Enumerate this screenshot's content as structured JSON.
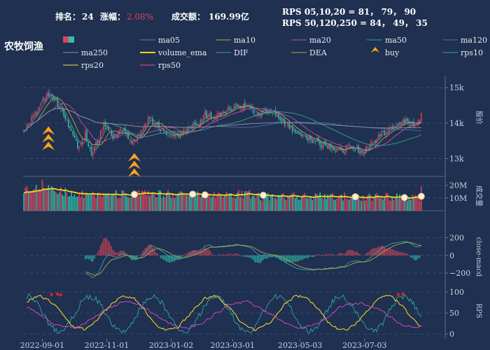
{
  "header": {
    "rank_label": "排名：",
    "rank_value": "24",
    "change_label": "涨幅：",
    "change_value": "2.08%",
    "turnover_label": "成交额：",
    "turnover_value": "169.99亿",
    "rps_line1": "RPS 05,10,20 = 81， 79， 90",
    "rps_line2": "RPS 50,120,250 = 84， 49， 35",
    "sector_title": "农牧饲渔"
  },
  "colors": {
    "background": "#1f3050",
    "up": "#e0435a",
    "down": "#2fbfa9",
    "ma05": "#4a8fb0",
    "ma10": "#b5a84a",
    "ma20": "#c24db0",
    "ma50": "#2ea88a",
    "ma120": "#3f6fb5",
    "ma250": "#a08a90",
    "volume_ema": "#ffd21a",
    "dif": "#2ea8a8",
    "dea": "#b5a84a",
    "buy": "#ffa31a",
    "rps10": "#2ea8a8",
    "rps20": "#ffe02a",
    "rps50": "#e04ad0"
  },
  "legend": [
    {
      "name": "ma05",
      "key": "ma05",
      "kind": "line"
    },
    {
      "name": "ma10",
      "key": "ma10",
      "kind": "line"
    },
    {
      "name": "ma20",
      "key": "ma20",
      "kind": "line"
    },
    {
      "name": "ma50",
      "key": "ma50",
      "kind": "line"
    },
    {
      "name": "ma120",
      "key": "ma120",
      "kind": "line"
    },
    {
      "name": "ma250",
      "key": "ma250",
      "kind": "line"
    },
    {
      "name": "volume_ema",
      "key": "volume_ema",
      "kind": "thick"
    },
    {
      "name": "DIF",
      "key": "dif",
      "kind": "line"
    },
    {
      "name": "DEA",
      "key": "dea",
      "kind": "line"
    },
    {
      "name": "buy",
      "key": "buy",
      "kind": "marker"
    },
    {
      "name": "rps10",
      "key": "rps10",
      "kind": "line"
    },
    {
      "name": "rps20",
      "key": "rps20",
      "kind": "line"
    },
    {
      "name": "rps50",
      "key": "rps50",
      "kind": "line"
    }
  ],
  "chart_data": {
    "type": "candlestick",
    "x_tick_labels": [
      "2022-09-01",
      "2022-11-01",
      "2023-01-02",
      "2023-03-01",
      "2023-05-03",
      "2023-07-03"
    ],
    "x_tick_index": [
      12,
      54,
      96,
      136,
      180,
      222
    ],
    "n_bars": 260,
    "price_anchors": [
      [
        0,
        13850
      ],
      [
        8,
        14250
      ],
      [
        15,
        14800
      ],
      [
        20,
        14700
      ],
      [
        26,
        14250
      ],
      [
        32,
        13600
      ],
      [
        36,
        13250
      ],
      [
        40,
        13700
      ],
      [
        44,
        13050
      ],
      [
        48,
        13500
      ],
      [
        52,
        14000
      ],
      [
        58,
        13600
      ],
      [
        64,
        13850
      ],
      [
        70,
        13400
      ],
      [
        76,
        13750
      ],
      [
        82,
        14150
      ],
      [
        88,
        13850
      ],
      [
        94,
        13700
      ],
      [
        100,
        13650
      ],
      [
        106,
        13800
      ],
      [
        112,
        13950
      ],
      [
        118,
        14250
      ],
      [
        124,
        14100
      ],
      [
        130,
        14350
      ],
      [
        136,
        14450
      ],
      [
        142,
        14500
      ],
      [
        148,
        14400
      ],
      [
        154,
        14250
      ],
      [
        160,
        14350
      ],
      [
        166,
        14150
      ],
      [
        172,
        13950
      ],
      [
        178,
        13700
      ],
      [
        184,
        13600
      ],
      [
        190,
        13500
      ],
      [
        196,
        13350
      ],
      [
        202,
        13300
      ],
      [
        208,
        13250
      ],
      [
        214,
        13400
      ],
      [
        220,
        13100
      ],
      [
        226,
        13450
      ],
      [
        232,
        13650
      ],
      [
        238,
        13850
      ],
      [
        244,
        14000
      ],
      [
        250,
        14050
      ],
      [
        255,
        13950
      ],
      [
        259,
        14250
      ]
    ],
    "price_panel": {
      "ylabel": "股价",
      "ylim": [
        12500,
        15300
      ],
      "ticks": [
        13000,
        14000,
        15000
      ],
      "tick_labels": [
        "13k",
        "14k",
        "15k"
      ]
    },
    "volume_panel": {
      "ylabel": "成交量",
      "ylim": [
        0,
        27000000
      ],
      "ticks": [
        10000000,
        20000000
      ],
      "tick_labels": [
        "10M",
        "20M"
      ]
    },
    "macd_panel": {
      "ylabel": "close-macd",
      "ylim": [
        -310,
        260
      ],
      "ticks": [
        200,
        0,
        -200
      ],
      "tick_labels": [
        "200",
        "0",
        "−200"
      ]
    },
    "rps_panel": {
      "ylabel": "RPS",
      "ylim": [
        -8,
        112
      ],
      "ticks": [
        0,
        50,
        100
      ],
      "tick_labels": [
        "0",
        "50",
        "100"
      ]
    },
    "buy_signals": [
      {
        "index": 16,
        "price": 13850
      },
      {
        "index": 72,
        "price": 13100
      }
    ],
    "volume_highlights": [
      72,
      110,
      118,
      156,
      216,
      248,
      259
    ]
  }
}
